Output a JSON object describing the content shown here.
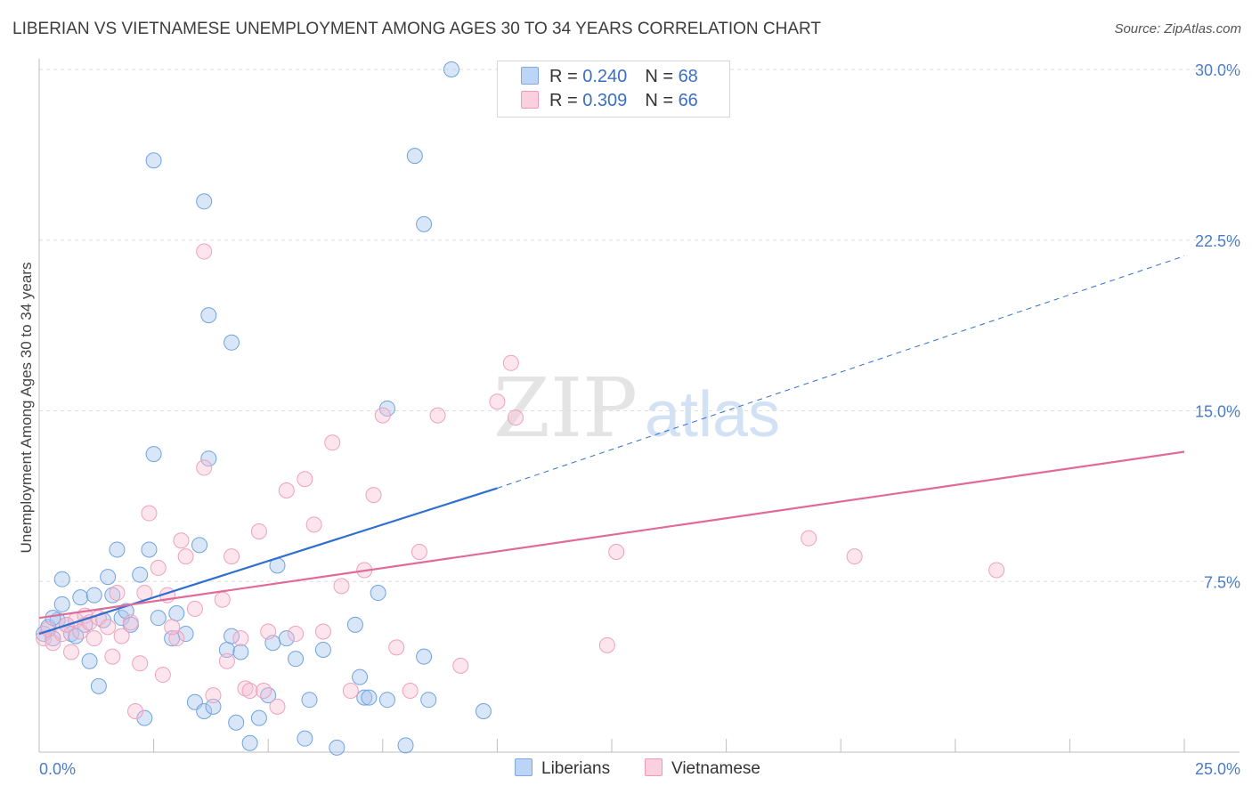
{
  "title": "LIBERIAN VS VIETNAMESE UNEMPLOYMENT AMONG AGES 30 TO 34 YEARS CORRELATION CHART",
  "source": "Source: ZipAtlas.com",
  "watermark": {
    "zip": "ZIP",
    "atlas": "atlas"
  },
  "legend": {
    "r_label": "R = ",
    "n_label": "N = ",
    "series": [
      {
        "r": "0.240",
        "n": "68"
      },
      {
        "r": "0.309",
        "n": "66"
      }
    ]
  },
  "chart_data": {
    "type": "scatter",
    "title": "LIBERIAN VS VIETNAMESE UNEMPLOYMENT AMONG AGES 30 TO 34 YEARS CORRELATION CHART",
    "xlabel": "",
    "ylabel": "Unemployment Among Ages 30 to 34 years",
    "xlim": [
      0,
      25
    ],
    "ylim": [
      0,
      30
    ],
    "x_tick_labels": [
      "0.0%",
      "25.0%"
    ],
    "y_ticks": [
      7.5,
      15.0,
      22.5,
      30.0
    ],
    "y_tick_labels": [
      "7.5%",
      "15.0%",
      "22.5%",
      "30.0%"
    ],
    "grid": true,
    "legend_position": "top-center",
    "colors": {
      "liberians": "#6fa3e0",
      "vietnamese": "#f0a0bc",
      "liberians_line": "#2f6fd0",
      "vietnamese_line": "#e06a98"
    },
    "series": [
      {
        "name": "Liberians",
        "r": 0.24,
        "n": 68,
        "trend": {
          "x": [
            0,
            10
          ],
          "y": [
            5.2,
            11.6
          ],
          "dashed_to": [
            25,
            21.8
          ]
        },
        "points": [
          [
            0.1,
            5.2
          ],
          [
            0.2,
            5.5
          ],
          [
            0.3,
            5.0
          ],
          [
            0.4,
            5.8
          ],
          [
            0.5,
            6.5
          ],
          [
            0.6,
            5.6
          ],
          [
            0.7,
            5.2
          ],
          [
            0.5,
            7.6
          ],
          [
            0.8,
            5.1
          ],
          [
            0.9,
            6.8
          ],
          [
            1.0,
            5.6
          ],
          [
            1.2,
            6.9
          ],
          [
            1.4,
            5.8
          ],
          [
            1.1,
            4.0
          ],
          [
            1.3,
            2.9
          ],
          [
            1.5,
            7.7
          ],
          [
            1.6,
            6.9
          ],
          [
            1.8,
            5.9
          ],
          [
            1.9,
            6.2
          ],
          [
            2.0,
            5.6
          ],
          [
            1.7,
            8.9
          ],
          [
            2.2,
            7.8
          ],
          [
            2.3,
            1.5
          ],
          [
            2.4,
            8.9
          ],
          [
            2.5,
            13.1
          ],
          [
            2.6,
            5.9
          ],
          [
            2.9,
            5.0
          ],
          [
            3.0,
            6.1
          ],
          [
            3.2,
            5.2
          ],
          [
            3.4,
            2.2
          ],
          [
            3.5,
            9.1
          ],
          [
            3.6,
            1.8
          ],
          [
            3.7,
            12.9
          ],
          [
            3.8,
            2.0
          ],
          [
            4.1,
            4.5
          ],
          [
            4.2,
            5.1
          ],
          [
            4.3,
            1.3
          ],
          [
            4.4,
            4.4
          ],
          [
            4.6,
            0.4
          ],
          [
            4.8,
            1.5
          ],
          [
            5.0,
            2.5
          ],
          [
            5.1,
            4.8
          ],
          [
            5.2,
            8.2
          ],
          [
            5.4,
            5.0
          ],
          [
            5.6,
            4.1
          ],
          [
            5.8,
            0.6
          ],
          [
            5.9,
            2.3
          ],
          [
            6.2,
            4.5
          ],
          [
            6.5,
            0.2
          ],
          [
            6.9,
            5.6
          ],
          [
            7.0,
            3.3
          ],
          [
            7.1,
            2.4
          ],
          [
            7.2,
            2.4
          ],
          [
            7.4,
            7.0
          ],
          [
            7.6,
            2.3
          ],
          [
            8.4,
            4.2
          ],
          [
            8.5,
            2.3
          ],
          [
            8.0,
            0.3
          ],
          [
            9.7,
            1.8
          ],
          [
            2.5,
            26.0
          ],
          [
            3.6,
            24.2
          ],
          [
            3.7,
            19.2
          ],
          [
            4.2,
            18.0
          ],
          [
            7.6,
            15.1
          ],
          [
            8.2,
            26.2
          ],
          [
            8.4,
            23.2
          ],
          [
            9.0,
            30.0
          ],
          [
            0.3,
            5.9
          ]
        ]
      },
      {
        "name": "Vietnamese",
        "r": 0.309,
        "n": 66,
        "trend": {
          "x": [
            0,
            25
          ],
          "y": [
            5.9,
            13.2
          ]
        },
        "points": [
          [
            0.1,
            5.0
          ],
          [
            0.2,
            5.4
          ],
          [
            0.3,
            4.8
          ],
          [
            0.5,
            5.2
          ],
          [
            0.6,
            5.6
          ],
          [
            0.7,
            4.4
          ],
          [
            0.8,
            5.8
          ],
          [
            0.9,
            5.3
          ],
          [
            1.0,
            6.0
          ],
          [
            1.1,
            5.7
          ],
          [
            1.2,
            5.0
          ],
          [
            1.3,
            5.9
          ],
          [
            1.5,
            5.5
          ],
          [
            1.6,
            4.2
          ],
          [
            1.8,
            5.1
          ],
          [
            2.0,
            5.7
          ],
          [
            2.1,
            1.8
          ],
          [
            2.2,
            3.9
          ],
          [
            2.3,
            7.0
          ],
          [
            2.4,
            10.5
          ],
          [
            2.6,
            8.1
          ],
          [
            2.7,
            3.4
          ],
          [
            2.8,
            6.9
          ],
          [
            3.0,
            5.0
          ],
          [
            3.1,
            9.3
          ],
          [
            3.2,
            8.6
          ],
          [
            3.4,
            6.3
          ],
          [
            3.6,
            12.5
          ],
          [
            3.8,
            2.5
          ],
          [
            4.0,
            6.7
          ],
          [
            4.1,
            4.0
          ],
          [
            4.2,
            8.6
          ],
          [
            4.4,
            5.0
          ],
          [
            4.5,
            2.8
          ],
          [
            4.6,
            2.7
          ],
          [
            4.8,
            9.7
          ],
          [
            4.9,
            2.7
          ],
          [
            5.0,
            5.3
          ],
          [
            5.2,
            2.0
          ],
          [
            5.4,
            11.5
          ],
          [
            5.6,
            5.2
          ],
          [
            5.8,
            12.0
          ],
          [
            6.0,
            10.0
          ],
          [
            6.2,
            5.3
          ],
          [
            6.4,
            13.6
          ],
          [
            6.6,
            7.3
          ],
          [
            6.8,
            2.7
          ],
          [
            7.1,
            8.0
          ],
          [
            7.3,
            11.3
          ],
          [
            7.5,
            14.8
          ],
          [
            7.8,
            4.6
          ],
          [
            8.1,
            2.7
          ],
          [
            8.3,
            8.8
          ],
          [
            8.7,
            14.8
          ],
          [
            9.2,
            3.8
          ],
          [
            10.0,
            15.4
          ],
          [
            10.3,
            17.1
          ],
          [
            10.4,
            14.7
          ],
          [
            12.4,
            4.7
          ],
          [
            12.6,
            8.8
          ],
          [
            16.8,
            9.4
          ],
          [
            17.8,
            8.6
          ],
          [
            20.9,
            8.0
          ],
          [
            3.6,
            22.0
          ],
          [
            1.7,
            7.0
          ],
          [
            2.9,
            5.5
          ]
        ]
      }
    ]
  },
  "bottom_legend": [
    "Liberians",
    "Vietnamese"
  ]
}
